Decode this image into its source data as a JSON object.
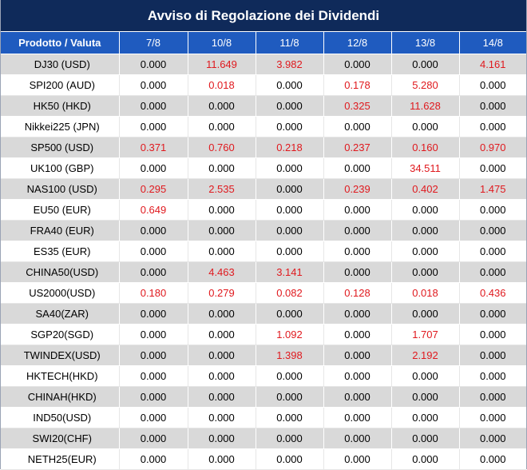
{
  "title": "Avviso di Regolazione dei Dividendi",
  "headers": [
    "Prodotto / Valuta",
    "7/8",
    "10/8",
    "11/8",
    "12/8",
    "13/8",
    "14/8"
  ],
  "highlight_color": "#e0191e",
  "rows": [
    {
      "product": "DJ30 (USD)",
      "values": [
        "0.000",
        "11.649",
        "3.982",
        "0.000",
        "0.000",
        "4.161"
      ]
    },
    {
      "product": "SPI200 (AUD)",
      "values": [
        "0.000",
        "0.018",
        "0.000",
        "0.178",
        "5.280",
        "0.000"
      ]
    },
    {
      "product": "HK50 (HKD)",
      "values": [
        "0.000",
        "0.000",
        "0.000",
        "0.325",
        "11.628",
        "0.000"
      ]
    },
    {
      "product": "Nikkei225 (JPN)",
      "values": [
        "0.000",
        "0.000",
        "0.000",
        "0.000",
        "0.000",
        "0.000"
      ]
    },
    {
      "product": "SP500 (USD)",
      "values": [
        "0.371",
        "0.760",
        "0.218",
        "0.237",
        "0.160",
        "0.970"
      ]
    },
    {
      "product": "UK100 (GBP)",
      "values": [
        "0.000",
        "0.000",
        "0.000",
        "0.000",
        "34.511",
        "0.000"
      ]
    },
    {
      "product": "NAS100 (USD)",
      "values": [
        "0.295",
        "2.535",
        "0.000",
        "0.239",
        "0.402",
        "1.475"
      ]
    },
    {
      "product": "EU50 (EUR)",
      "values": [
        "0.649",
        "0.000",
        "0.000",
        "0.000",
        "0.000",
        "0.000"
      ]
    },
    {
      "product": "FRA40 (EUR)",
      "values": [
        "0.000",
        "0.000",
        "0.000",
        "0.000",
        "0.000",
        "0.000"
      ]
    },
    {
      "product": "ES35 (EUR)",
      "values": [
        "0.000",
        "0.000",
        "0.000",
        "0.000",
        "0.000",
        "0.000"
      ]
    },
    {
      "product": "CHINA50(USD)",
      "values": [
        "0.000",
        "4.463",
        "3.141",
        "0.000",
        "0.000",
        "0.000"
      ]
    },
    {
      "product": "US2000(USD)",
      "values": [
        "0.180",
        "0.279",
        "0.082",
        "0.128",
        "0.018",
        "0.436"
      ]
    },
    {
      "product": "SA40(ZAR)",
      "values": [
        "0.000",
        "0.000",
        "0.000",
        "0.000",
        "0.000",
        "0.000"
      ]
    },
    {
      "product": "SGP20(SGD)",
      "values": [
        "0.000",
        "0.000",
        "1.092",
        "0.000",
        "1.707",
        "0.000"
      ]
    },
    {
      "product": "TWINDEX(USD)",
      "values": [
        "0.000",
        "0.000",
        "1.398",
        "0.000",
        "2.192",
        "0.000"
      ]
    },
    {
      "product": "HKTECH(HKD)",
      "values": [
        "0.000",
        "0.000",
        "0.000",
        "0.000",
        "0.000",
        "0.000"
      ]
    },
    {
      "product": "CHINAH(HKD)",
      "values": [
        "0.000",
        "0.000",
        "0.000",
        "0.000",
        "0.000",
        "0.000"
      ]
    },
    {
      "product": "IND50(USD)",
      "values": [
        "0.000",
        "0.000",
        "0.000",
        "0.000",
        "0.000",
        "0.000"
      ]
    },
    {
      "product": "SWI20(CHF)",
      "values": [
        "0.000",
        "0.000",
        "0.000",
        "0.000",
        "0.000",
        "0.000"
      ]
    },
    {
      "product": "NETH25(EUR)",
      "values": [
        "0.000",
        "0.000",
        "0.000",
        "0.000",
        "0.000",
        "0.000"
      ]
    }
  ]
}
